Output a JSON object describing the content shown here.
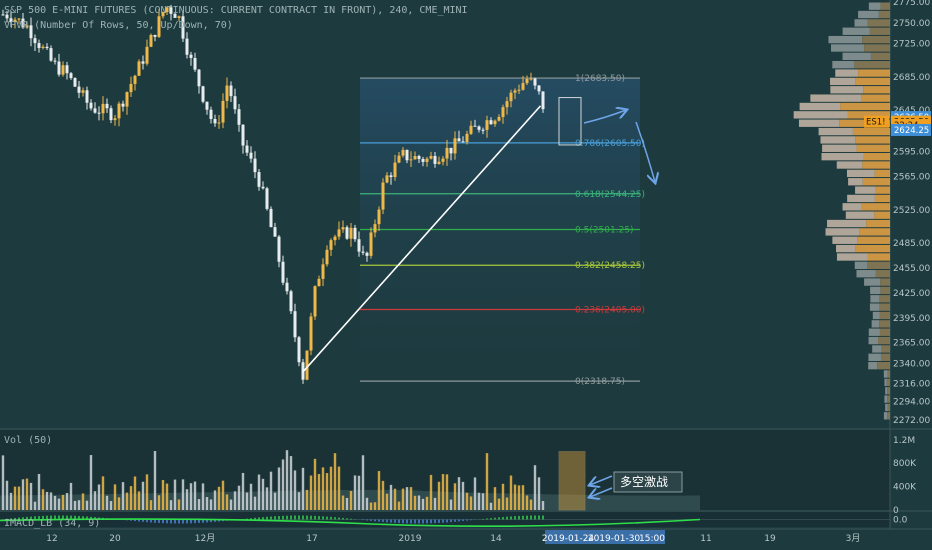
{
  "header": {
    "title": "S&P 500 E-MINI FUTURES (CONTINUOUS: CURRENT CONTRACT IN FRONT), 240, CME_MINI",
    "vpvr_label": "VPVR (Number Of Rows, 50, Up/Down, 70)"
  },
  "volume_pane": {
    "label": "Vol (50)"
  },
  "macd_pane": {
    "label": "IMACD_LB (34, 9)"
  },
  "annotation": {
    "text": "多空激战"
  },
  "colors": {
    "background": "#1d3a3e",
    "up_candle": "#f0b848",
    "down_candle": "#e8ecee",
    "fib_0786": "#4a9ed8",
    "fib_0618": "#3ab57a",
    "fib_05": "#2fb04a",
    "fib_0382": "#a8c83a",
    "fib_0236": "#cc3a3a",
    "fib_extreme": "#8e9a9c",
    "arrow": "#6fa4e8",
    "price_tag": "#3f8fd8",
    "symbol_tag": "#f0a020"
  },
  "chart_data": {
    "type": "candlestick",
    "timeframe": "240",
    "price_axis": {
      "range": [
        2272,
        2775
      ],
      "ticks": [
        "2775.00",
        "2750.00",
        "2725.00",
        "2685.00",
        "2645.00",
        "2595.00",
        "2565.00",
        "2525.00",
        "2485.00",
        "2455.00",
        "2425.00",
        "2395.00",
        "2365.00",
        "2340.00",
        "2316.00",
        "2294.00",
        "2272.00"
      ]
    },
    "time_axis": {
      "labels": [
        "12",
        "20",
        "12月",
        "17",
        "2019",
        "14",
        "2019-01-24",
        "2019-01-30",
        "15:00",
        "11",
        "19",
        "3月"
      ],
      "highlight": [
        "2019-01-24",
        "2019-01-30",
        "15:00"
      ]
    },
    "price_tags": [
      {
        "label": "2636.50",
        "value": 2636.5,
        "kind": "price"
      },
      {
        "label": "ES1!",
        "value": 2631,
        "kind": "symbol"
      },
      {
        "label": "2635.50",
        "value": 2631,
        "kind": "current"
      },
      {
        "label": "22:24",
        "value": 2627,
        "kind": "countdown"
      },
      {
        "label": "2624.25",
        "value": 2621,
        "kind": "price"
      }
    ],
    "fibonacci": {
      "from": {
        "date": "2018-12-24",
        "price": 2318.75
      },
      "to": {
        "date": "2019-01-31",
        "price": 2683.5
      },
      "levels": [
        {
          "ratio": 1,
          "label": "1(2683.50)",
          "price": 2683.5,
          "color": "#8e9a9c"
        },
        {
          "ratio": 0.786,
          "label": "0.786(2605.50)",
          "price": 2605.5,
          "color": "#4a9ed8"
        },
        {
          "ratio": 0.618,
          "label": "0.618(2544.25)",
          "price": 2544.25,
          "color": "#3ab57a"
        },
        {
          "ratio": 0.5,
          "label": "0.5(2501.25)",
          "price": 2501.25,
          "color": "#2fb04a"
        },
        {
          "ratio": 0.382,
          "label": "0.382(2458.25)",
          "price": 2458.25,
          "color": "#a8c83a"
        },
        {
          "ratio": 0.236,
          "label": "0.236(2405.00)",
          "price": 2405.0,
          "color": "#cc3a3a"
        },
        {
          "ratio": 0,
          "label": "0(2318.75)",
          "price": 2318.75,
          "color": "#8e9a9c"
        }
      ]
    },
    "trendline": {
      "from": {
        "date": "2018-12-24",
        "price": 2330
      },
      "to": {
        "date": "2019-01-31",
        "price": 2650
      }
    },
    "anchors": [
      {
        "date": "2018-11-07",
        "price": 2760
      },
      {
        "date": "2018-11-10",
        "price": 2745
      },
      {
        "date": "2018-11-14",
        "price": 2700
      },
      {
        "date": "2018-11-16",
        "price": 2690
      },
      {
        "date": "2018-11-20",
        "price": 2648
      },
      {
        "date": "2018-11-24",
        "price": 2640
      },
      {
        "date": "2018-11-28",
        "price": 2700
      },
      {
        "date": "2018-12-02",
        "price": 2770
      },
      {
        "date": "2018-12-04",
        "price": 2760
      },
      {
        "date": "2018-12-06",
        "price": 2705
      },
      {
        "date": "2018-12-10",
        "price": 2620
      },
      {
        "date": "2018-12-12",
        "price": 2680
      },
      {
        "date": "2018-12-14",
        "price": 2610
      },
      {
        "date": "2018-12-17",
        "price": 2560
      },
      {
        "date": "2018-12-20",
        "price": 2470
      },
      {
        "date": "2018-12-22",
        "price": 2400
      },
      {
        "date": "2018-12-24",
        "price": 2325
      },
      {
        "date": "2018-12-26",
        "price": 2430
      },
      {
        "date": "2018-12-28",
        "price": 2490
      },
      {
        "date": "2019-01-01",
        "price": 2500
      },
      {
        "date": "2019-01-03",
        "price": 2460
      },
      {
        "date": "2019-01-06",
        "price": 2560
      },
      {
        "date": "2019-01-09",
        "price": 2590
      },
      {
        "date": "2019-01-13",
        "price": 2585
      },
      {
        "date": "2019-01-17",
        "price": 2600
      },
      {
        "date": "2019-01-21",
        "price": 2625
      },
      {
        "date": "2019-01-24",
        "price": 2640
      },
      {
        "date": "2019-01-27",
        "price": 2670
      },
      {
        "date": "2019-01-29",
        "price": 2683.5
      },
      {
        "date": "2019-01-31",
        "price": 2660
      },
      {
        "date": "2019-02-01",
        "price": 2635
      }
    ],
    "volume_axis": {
      "range": [
        0,
        1300000
      ],
      "ticks": [
        "1.2M",
        "800K",
        "400K",
        "0"
      ]
    },
    "macd_axis": {
      "ticks": [
        "0.0"
      ]
    },
    "volume_profile": {
      "type": "VPVR",
      "rows": 50,
      "mode": "Up/Down",
      "value_area": 70
    }
  }
}
